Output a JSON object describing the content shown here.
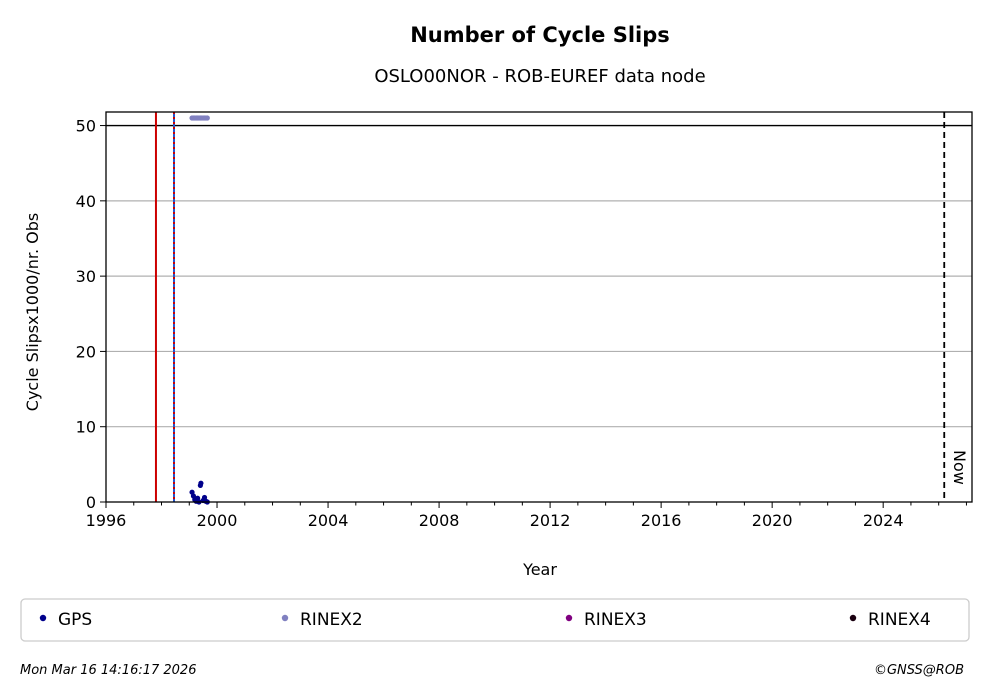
{
  "chart_data": {
    "type": "scatter",
    "title": "Number of Cycle Slips",
    "subtitle": "OSLO00NOR - ROB-EUREF data node",
    "xlabel": "Year",
    "ylabel": "Cycle Slipsx1000/nr. Obs",
    "xlim": [
      1996.0,
      2027.2
    ],
    "ylim": [
      0,
      51.8
    ],
    "xticks": [
      1996,
      2000,
      2004,
      2008,
      2012,
      2016,
      2020,
      2024
    ],
    "yticks": [
      0,
      10,
      20,
      30,
      40,
      50
    ],
    "grid": "y",
    "reference_line_y": 50,
    "vertical_lines": [
      {
        "x": 1997.8,
        "color": "#cc0000",
        "style": "solid"
      },
      {
        "x": 1998.45,
        "color": "#2255cc",
        "style": "solid"
      },
      {
        "x": 1998.45,
        "color": "#cc0000",
        "style": "dotted"
      }
    ],
    "now_line": {
      "x": 2026.2,
      "label": "Now"
    },
    "series": [
      {
        "name": "GPS",
        "color": "#00008b",
        "points": [
          [
            1999.1,
            1.3
          ],
          [
            1999.15,
            0.8
          ],
          [
            1999.2,
            0.3
          ],
          [
            1999.25,
            0.1
          ],
          [
            1999.3,
            0.5
          ],
          [
            1999.35,
            0.0
          ],
          [
            1999.4,
            2.2
          ],
          [
            1999.42,
            2.5
          ],
          [
            1999.5,
            0.2
          ],
          [
            1999.55,
            0.6
          ],
          [
            1999.6,
            0.1
          ],
          [
            1999.65,
            0.0
          ]
        ]
      },
      {
        "name": "RINEX2",
        "color": "#8080c0",
        "points": [
          [
            1999.1,
            51
          ],
          [
            1999.15,
            51
          ],
          [
            1999.2,
            51
          ],
          [
            1999.25,
            51
          ],
          [
            1999.3,
            51
          ],
          [
            1999.35,
            51
          ],
          [
            1999.4,
            51
          ],
          [
            1999.45,
            51
          ],
          [
            1999.5,
            51
          ],
          [
            1999.55,
            51
          ],
          [
            1999.6,
            51
          ],
          [
            1999.65,
            51
          ]
        ]
      },
      {
        "name": "RINEX3",
        "color": "#800080",
        "points": []
      },
      {
        "name": "RINEX4",
        "color": "#1a0010",
        "points": []
      }
    ],
    "legend_placement": "bottom"
  },
  "footer": {
    "timestamp": "Mon Mar 16 14:16:17 2026",
    "credit": "©GNSS@ROB"
  }
}
